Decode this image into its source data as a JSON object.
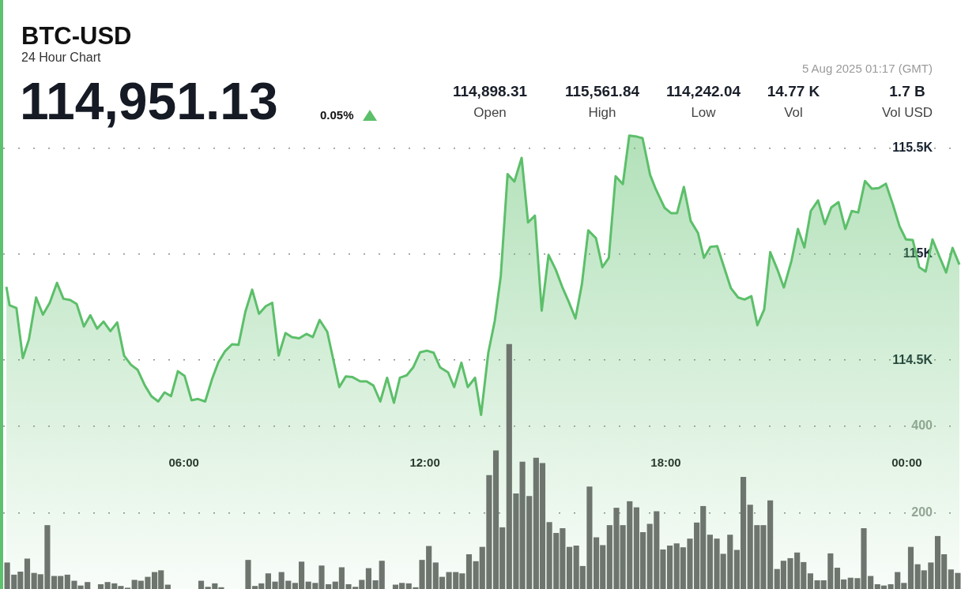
{
  "chart_data": {
    "type": "area",
    "title": "BTC-USD",
    "subtitle": "24 Hour Chart",
    "annotations": [
      "114,951.13",
      "0.05%",
      "5 Aug 2025 01:17 (GMT)",
      "114,898.31",
      "Open",
      "115,561.84",
      "High",
      "114,242.04",
      "Low",
      "14.77 K",
      "Vol",
      "1.7 B",
      "Vol USD"
    ],
    "xlim": [
      1.5,
      25.35
    ],
    "xticks": [
      {
        "value": 6,
        "label": "06:00"
      },
      {
        "value": 12,
        "label": "12:00"
      },
      {
        "value": 18,
        "label": "18:00"
      },
      {
        "value": 24,
        "label": "00:00"
      }
    ],
    "ylim": [
      113420,
      116200
    ],
    "yticks": [
      {
        "value": 114500,
        "label": "114.5K"
      },
      {
        "value": 115000,
        "label": "115K"
      },
      {
        "value": 115500,
        "label": "115.5K"
      }
    ],
    "y2lim": [
      25,
      1381
    ],
    "y2ticks": [
      200,
      400
    ],
    "grid": "y",
    "legend": false,
    "marker": "none",
    "series": [
      {
        "color": "#5cbf6a",
        "x": [
          1.58,
          1.66,
          1.83,
          1.99,
          2.14,
          2.32,
          2.49,
          2.66,
          2.84,
          3.0,
          3.17,
          3.33,
          3.51,
          3.67,
          3.84,
          4.0,
          4.17,
          4.34,
          4.51,
          4.68,
          4.85,
          5.03,
          5.19,
          5.36,
          5.52,
          5.68,
          5.85,
          6.02,
          6.19,
          6.35,
          6.53,
          6.7,
          6.86,
          7.02,
          7.2,
          7.36,
          7.53,
          7.7,
          7.87,
          8.04,
          8.2,
          8.36,
          8.53,
          8.69,
          8.87,
          9.05,
          9.21,
          9.38,
          9.57,
          9.87,
          10.03,
          10.19,
          10.39,
          10.55,
          10.72,
          10.89,
          11.06,
          11.23,
          11.38,
          11.55,
          11.71,
          11.88,
          12.05,
          12.22,
          12.38,
          12.58,
          12.73,
          12.91,
          13.07,
          13.25,
          13.4,
          13.58,
          13.74,
          13.89,
          14.06,
          14.23,
          14.41,
          14.57,
          14.74,
          14.91,
          15.08,
          15.26,
          15.42,
          15.58,
          15.75,
          15.91,
          16.07,
          16.26,
          16.42,
          16.58,
          16.75,
          16.93,
          17.09,
          17.28,
          17.42,
          17.61,
          17.74,
          17.97,
          18.13,
          18.28,
          18.45,
          18.62,
          18.8,
          18.95,
          19.11,
          19.28,
          19.44,
          19.62,
          19.8,
          19.96,
          20.13,
          20.28,
          20.45,
          20.6,
          20.78,
          20.94,
          21.13,
          21.29,
          21.45,
          21.61,
          21.79,
          21.96,
          22.12,
          22.3,
          22.47,
          22.63,
          22.79,
          22.96,
          23.13,
          23.3,
          23.48,
          23.66,
          23.82,
          23.98,
          24.15,
          24.31,
          24.47,
          24.64,
          24.8,
          24.98,
          25.14,
          25.31
        ],
        "values": [
          114846,
          114759,
          114746,
          114510,
          114597,
          114796,
          114715,
          114771,
          114865,
          114790,
          114784,
          114765,
          114659,
          114712,
          114649,
          114682,
          114637,
          114678,
          114522,
          114479,
          114454,
          114380,
          114330,
          114305,
          114348,
          114330,
          114448,
          114425,
          114311,
          114317,
          114305,
          114410,
          114491,
          114541,
          114575,
          114572,
          114728,
          114833,
          114719,
          114755,
          114771,
          114522,
          114628,
          114609,
          114603,
          114624,
          114609,
          114690,
          114634,
          114373,
          114423,
          114421,
          114400,
          114400,
          114380,
          114305,
          114417,
          114299,
          114417,
          114429,
          114466,
          114537,
          114545,
          114535,
          114466,
          114442,
          114373,
          114488,
          114373,
          114417,
          114242,
          114535,
          114684,
          114896,
          115378,
          115343,
          115455,
          115150,
          115182,
          114734,
          114997,
          114927,
          114846,
          114777,
          114697,
          114858,
          115113,
          115076,
          114939,
          114983,
          115368,
          115331,
          115560,
          115555,
          115548,
          115374,
          115312,
          115219,
          115194,
          115194,
          115318,
          115157,
          115101,
          114983,
          115035,
          115038,
          114945,
          114840,
          114796,
          114786,
          114802,
          114665,
          114740,
          115010,
          114927,
          114843,
          114970,
          115119,
          115032,
          115204,
          115254,
          115142,
          115221,
          115246,
          115119,
          115204,
          115197,
          115346,
          115309,
          115312,
          115333,
          115231,
          115132,
          115070,
          115067,
          114939,
          114918,
          115070,
          114995,
          114914,
          115030,
          114951
        ]
      },
      {
        "type": "bar",
        "axis": "y2",
        "color": "#6d756e",
        "x": [
          1.6,
          1.77,
          1.93,
          2.1,
          2.27,
          2.43,
          2.6,
          2.77,
          2.93,
          3.1,
          3.27,
          3.43,
          3.6,
          3.77,
          3.93,
          4.1,
          4.27,
          4.43,
          4.6,
          4.77,
          4.93,
          5.1,
          5.27,
          5.43,
          5.6,
          5.77,
          5.93,
          6.1,
          6.27,
          6.43,
          6.6,
          6.77,
          6.93,
          7.1,
          7.27,
          7.43,
          7.6,
          7.77,
          7.93,
          8.1,
          8.27,
          8.43,
          8.6,
          8.77,
          8.93,
          9.1,
          9.27,
          9.43,
          9.6,
          9.77,
          9.93,
          10.1,
          10.27,
          10.43,
          10.6,
          10.77,
          10.93,
          11.1,
          11.27,
          11.43,
          11.6,
          11.77,
          11.93,
          12.1,
          12.27,
          12.43,
          12.6,
          12.77,
          12.93,
          13.1,
          13.27,
          13.43,
          13.6,
          13.77,
          13.93,
          14.1,
          14.27,
          14.43,
          14.6,
          14.77,
          14.93,
          15.1,
          15.27,
          15.43,
          15.6,
          15.77,
          15.93,
          16.1,
          16.27,
          16.43,
          16.6,
          16.77,
          16.93,
          17.1,
          17.27,
          17.43,
          17.6,
          17.77,
          17.93,
          18.1,
          18.27,
          18.43,
          18.6,
          18.77,
          18.93,
          19.1,
          19.27,
          19.43,
          19.6,
          19.77,
          19.93,
          20.1,
          20.27,
          20.43,
          20.6,
          20.77,
          20.93,
          21.1,
          21.27,
          21.43,
          21.6,
          21.77,
          21.93,
          22.1,
          22.27,
          22.43,
          22.6,
          22.77,
          22.93,
          23.1,
          23.27,
          23.43,
          23.6,
          23.77,
          23.93,
          24.1,
          24.27,
          24.43,
          24.6,
          24.77,
          24.93,
          25.1,
          25.27
        ],
        "values": [
          86,
          58,
          65,
          95,
          62,
          59,
          172,
          55,
          55,
          58,
          44,
          33,
          41,
          null,
          36,
          41,
          38,
          32,
          28,
          46,
          44,
          53,
          64,
          68,
          35,
          null,
          null,
          null,
          null,
          44,
          30,
          38,
          29,
          null,
          null,
          null,
          92,
          32,
          38,
          61,
          42,
          64,
          44,
          39,
          88,
          42,
          39,
          79,
          36,
          42,
          75,
          36,
          30,
          46,
          73,
          45,
          90,
          null,
          35,
          39,
          38,
          29,
          92,
          124,
          86,
          53,
          64,
          64,
          61,
          105,
          89,
          122,
          287,
          344,
          167,
          589,
          245,
          318,
          239,
          327,
          315,
          179,
          154,
          165,
          122,
          125,
          78,
          261,
          144,
          126,
          172,
          212,
          172,
          227,
          213,
          156,
          175,
          204,
          116,
          125,
          130,
          121,
          141,
          178,
          216,
          150,
          141,
          106,
          150,
          115,
          283,
          219,
          172,
          172,
          229,
          71,
          90,
          96,
          109,
          87,
          61,
          45,
          45,
          107,
          74,
          47,
          51,
          50,
          165,
          55,
          36,
          33,
          36,
          64,
          39,
          122,
          82,
          68,
          86,
          147,
          105,
          70,
          62
        ]
      }
    ]
  }
}
